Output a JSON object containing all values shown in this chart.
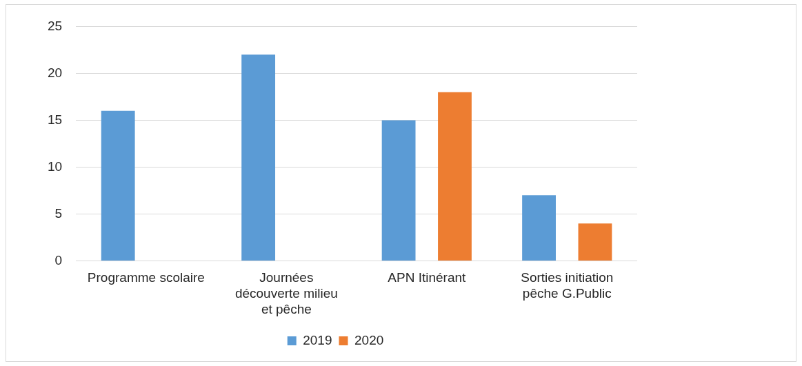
{
  "chart_data": {
    "type": "bar",
    "categories": [
      "Programme scolaire",
      "Journées découverte milieu et pêche",
      "APN Itinérant",
      "Sorties initiation pêche G.Public"
    ],
    "series": [
      {
        "name": "2019",
        "color": "#5b9bd5",
        "values": [
          16,
          22,
          15,
          7
        ]
      },
      {
        "name": "2020",
        "color": "#ed7d31",
        "values": [
          0,
          0,
          18,
          4
        ]
      }
    ],
    "ylim": [
      0,
      25
    ],
    "yticks": [
      0,
      5,
      10,
      15,
      20,
      25
    ],
    "grid": "y",
    "legend": "bottom"
  }
}
